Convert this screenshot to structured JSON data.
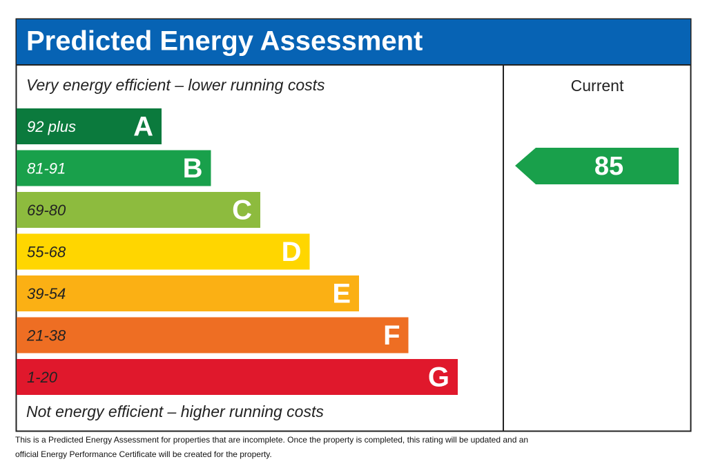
{
  "header": {
    "title": "Predicted Energy Assessment"
  },
  "top_label": "Very energy efficient – lower running costs",
  "bottom_label": "Not energy efficient – higher running costs",
  "bands": [
    {
      "range": "92 plus",
      "letter": "A",
      "color": "#0b7a3d"
    },
    {
      "range": "81-91",
      "letter": "B",
      "color": "#19a04b"
    },
    {
      "range": "69-80",
      "letter": "C",
      "color": "#8dbb3e"
    },
    {
      "range": "55-68",
      "letter": "D",
      "color": "#ffd600"
    },
    {
      "range": "39-54",
      "letter": "E",
      "color": "#fbb014"
    },
    {
      "range": "21-38",
      "letter": "F",
      "color": "#ee6e23"
    },
    {
      "range": "1-20",
      "letter": "G",
      "color": "#e0182c"
    }
  ],
  "current": {
    "label": "Current",
    "value": "85",
    "color": "#19a04b"
  },
  "footer": [
    "This is a Predicted Energy Assessment for properties that are incomplete. Once the property is completed, this rating will be updated and an",
    "official Energy Performance Certificate will be created for the property."
  ]
}
